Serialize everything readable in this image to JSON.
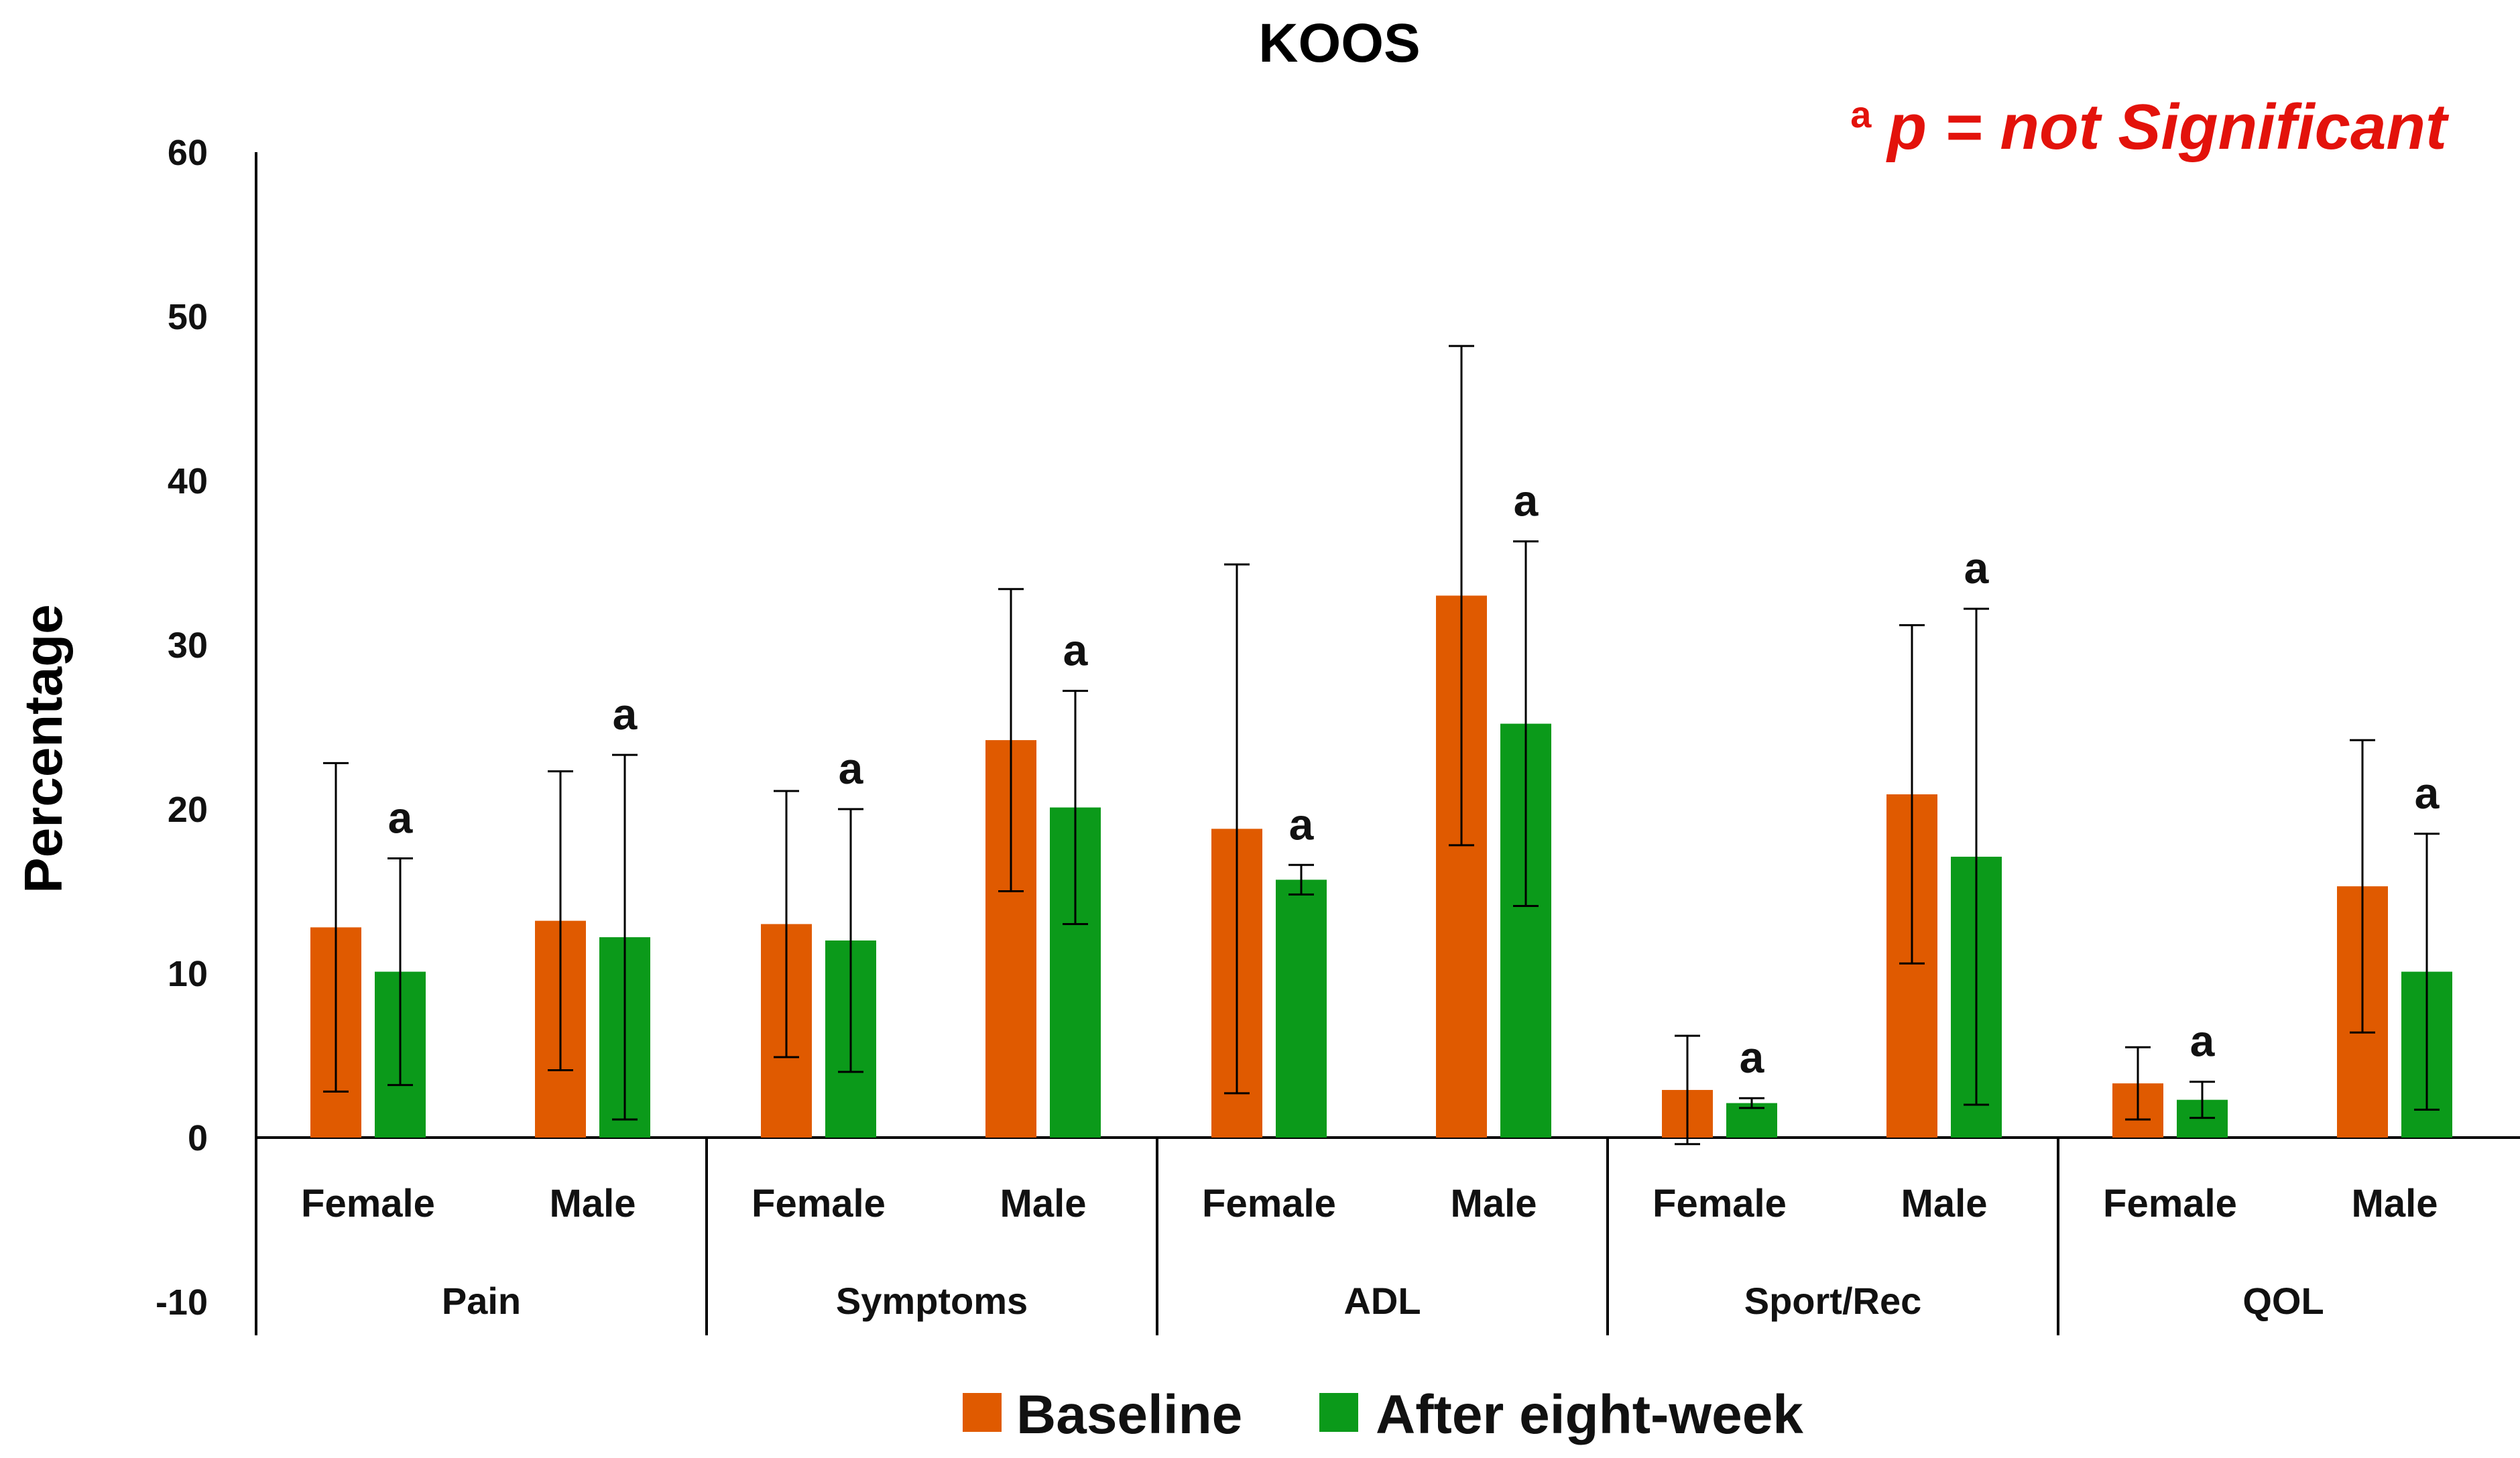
{
  "chart_data": {
    "type": "bar",
    "title": "KOOS",
    "ylabel": "Percentage",
    "xlabel": "",
    "ylim": [
      -10,
      60
    ],
    "yticks": [
      -10,
      0,
      10,
      20,
      30,
      40,
      50,
      60
    ],
    "groups": [
      "Pain",
      "Symptoms",
      "ADL",
      "Sport/Rec",
      "QOL"
    ],
    "subcategories": [
      "Female",
      "Male"
    ],
    "categories": [
      "Pain Female",
      "Pain Male",
      "Symptoms Female",
      "Symptoms Male",
      "ADL Female",
      "ADL Male",
      "Sport/Rec Female",
      "Sport/Rec Male",
      "QOL Female",
      "QOL Male"
    ],
    "series": [
      {
        "name": "Baseline",
        "color": "#e05a00",
        "values": [
          12.8,
          13.2,
          13.0,
          24.2,
          18.8,
          33.0,
          2.9,
          20.9,
          3.3,
          15.3
        ],
        "error": [
          10.0,
          9.1,
          8.1,
          9.2,
          16.1,
          15.2,
          3.3,
          10.3,
          2.2,
          8.9
        ]
      },
      {
        "name": "After eight-week",
        "color": "#0b9a1a",
        "values": [
          10.1,
          12.2,
          12.0,
          20.1,
          15.7,
          25.2,
          2.1,
          17.1,
          2.3,
          10.1
        ],
        "error": [
          6.9,
          11.1,
          8.0,
          7.1,
          0.9,
          11.1,
          0.3,
          15.1,
          1.1,
          8.4
        ]
      }
    ],
    "significance_marker": "a",
    "annotation": {
      "superscript": "a",
      "text": "p = not Significant"
    },
    "legend": [
      "Baseline",
      "After eight-week"
    ],
    "legend_position": "bottom"
  }
}
